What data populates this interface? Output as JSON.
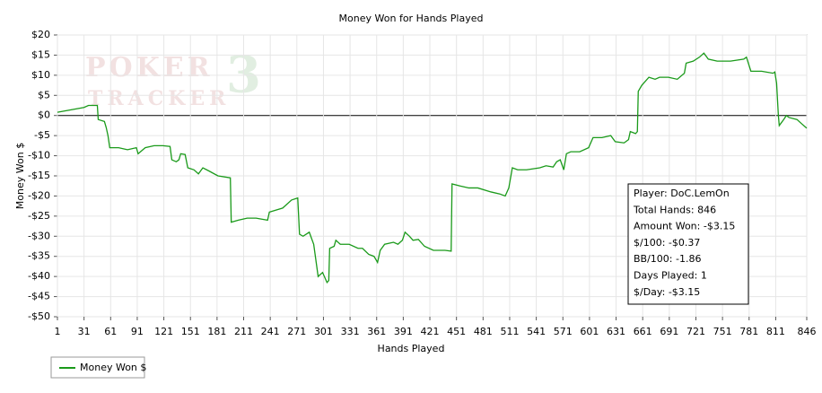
{
  "chart_data": {
    "type": "line",
    "title": "Money Won for Hands Played",
    "xlabel": "Hands Played",
    "ylabel": "Money Won $",
    "xlim": [
      1,
      846
    ],
    "ylim": [
      -50,
      20
    ],
    "xticks": [
      1,
      31,
      61,
      91,
      121,
      151,
      181,
      211,
      241,
      271,
      301,
      331,
      361,
      391,
      421,
      451,
      481,
      511,
      541,
      571,
      601,
      631,
      661,
      691,
      721,
      751,
      781,
      811,
      846
    ],
    "yticks": [
      {
        "value": 20,
        "label": "$20"
      },
      {
        "value": 15,
        "label": "$15"
      },
      {
        "value": 10,
        "label": "$10"
      },
      {
        "value": 5,
        "label": "$5"
      },
      {
        "value": 0,
        "label": "$0"
      },
      {
        "value": -5,
        "label": "-$5"
      },
      {
        "value": -10,
        "label": "-$10"
      },
      {
        "value": -15,
        "label": "-$15"
      },
      {
        "value": -20,
        "label": "-$20"
      },
      {
        "value": -25,
        "label": "-$25"
      },
      {
        "value": -30,
        "label": "-$30"
      },
      {
        "value": -35,
        "label": "-$35"
      },
      {
        "value": -40,
        "label": "-$40"
      },
      {
        "value": -45,
        "label": "-$45"
      },
      {
        "value": -50,
        "label": "-$50"
      }
    ],
    "grid": true,
    "legend": "bottom-left",
    "watermark": [
      "POKER",
      "TRACKER",
      "3"
    ],
    "stats_box": [
      "Player: DoC.LemOn",
      "Total Hands: 846",
      "Amount Won: -$3.15",
      "$/100: -$0.37",
      "BB/100: -1.86",
      "Days Played: 1",
      "$/Day: -$3.15"
    ],
    "series": [
      {
        "name": "Money Won $",
        "color": "#1a9a1a",
        "x": [
          1,
          31,
          36,
          46,
          47,
          54,
          56,
          58,
          60,
          70,
          80,
          90,
          92,
          100,
          110,
          120,
          128,
          130,
          135,
          138,
          140,
          145,
          148,
          155,
          160,
          165,
          172,
          182,
          196,
          197,
          205,
          215,
          225,
          238,
          240,
          255,
          265,
          272,
          274,
          278,
          285,
          290,
          295,
          300,
          305,
          307,
          308,
          313,
          315,
          320,
          330,
          340,
          345,
          352,
          358,
          362,
          365,
          370,
          380,
          385,
          390,
          393,
          398,
          402,
          408,
          415,
          425,
          438,
          445,
          446,
          455,
          465,
          475,
          490,
          500,
          506,
          510,
          514,
          520,
          530,
          545,
          552,
          560,
          564,
          568,
          572,
          575,
          580,
          590,
          600,
          605,
          615,
          625,
          630,
          640,
          645,
          647,
          653,
          655,
          656,
          660,
          668,
          675,
          680,
          690,
          700,
          708,
          710,
          718,
          725,
          730,
          735,
          745,
          760,
          775,
          778,
          783,
          795,
          808,
          810,
          812,
          814,
          815,
          820,
          823,
          826,
          835,
          840,
          846
        ],
        "values": [
          0.8,
          2,
          2.5,
          2.5,
          -1,
          -1.5,
          -3,
          -5,
          -8,
          -8,
          -8.5,
          -8,
          -9.5,
          -8,
          -7.5,
          -7.5,
          -7.7,
          -11,
          -11.5,
          -11,
          -9.5,
          -9.7,
          -13,
          -13.5,
          -14.5,
          -13,
          -13.8,
          -15,
          -15.5,
          -26.5,
          -26,
          -25.5,
          -25.5,
          -26,
          -24,
          -23,
          -21,
          -20.5,
          -29.5,
          -30,
          -29,
          -32,
          -40,
          -39,
          -41.5,
          -41,
          -33,
          -32.5,
          -31,
          -32,
          -32,
          -33,
          -33,
          -34.5,
          -35,
          -36.5,
          -33.5,
          -32,
          -31.5,
          -32,
          -31,
          -29,
          -30,
          -31,
          -30.8,
          -32.5,
          -33.5,
          -33.5,
          -33.7,
          -17,
          -17.5,
          -18,
          -18,
          -19,
          -19.5,
          -20,
          -18,
          -13,
          -13.5,
          -13.5,
          -13,
          -12.5,
          -12.8,
          -11.5,
          -11,
          -13.5,
          -9.5,
          -9,
          -9,
          -8,
          -5.5,
          -5.5,
          -5,
          -6.5,
          -6.8,
          -6,
          -4,
          -4.5,
          -4,
          6,
          7.5,
          9.5,
          9,
          9.5,
          9.5,
          9,
          10.5,
          13,
          13.5,
          14.5,
          15.5,
          14,
          13.5,
          13.5,
          14,
          14.5,
          11,
          11,
          10.5,
          10.8,
          8,
          0,
          -2.5,
          -1,
          0,
          -0.5,
          -1,
          -2,
          -3.15
        ]
      }
    ]
  }
}
